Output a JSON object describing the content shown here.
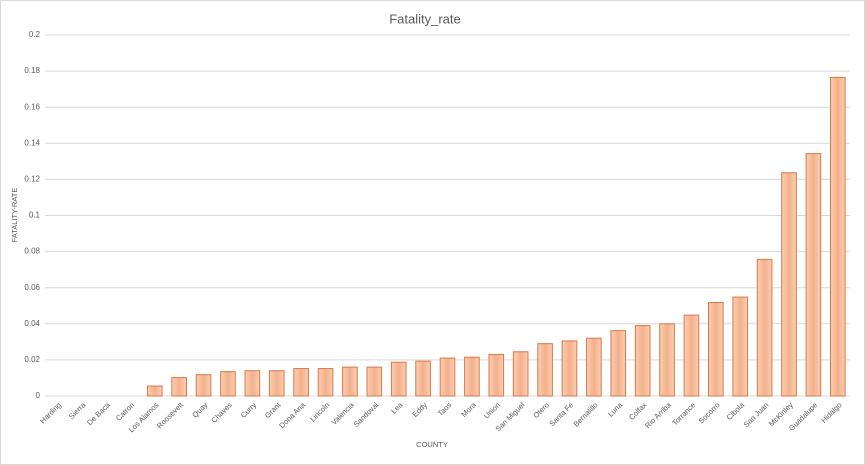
{
  "chart_data": {
    "type": "bar",
    "title": "Fatality_rate",
    "x_label": "COUNTY",
    "y_label": "FATALITY-RATE",
    "categories": [
      "Harding",
      "Sierra",
      "De Baca",
      "Catron",
      "Los Alamos",
      "Roosevelt",
      "Quay",
      "Chaves",
      "Curry",
      "Grant",
      "Dona Ana",
      "Lincoln",
      "Valencia",
      "Sandoval",
      "Lea",
      "Eddy",
      "Taos",
      "Mora",
      "Union",
      "San Miguel",
      "Otero",
      "Santa Fe",
      "Bernalillo",
      "Luna",
      "Colfax",
      "Rio Arriba",
      "Torrance",
      "Socorro",
      "Cibola",
      "San Juan",
      "McKinley",
      "Guadalupe",
      "Hidalgo"
    ],
    "values": [
      0,
      0,
      0,
      0,
      0.0055,
      0.0102,
      0.0118,
      0.0135,
      0.014,
      0.014,
      0.0152,
      0.0152,
      0.016,
      0.016,
      0.0187,
      0.0193,
      0.021,
      0.0215,
      0.023,
      0.0245,
      0.029,
      0.0305,
      0.032,
      0.0362,
      0.039,
      0.04,
      0.0448,
      0.0518,
      0.0548,
      0.0757,
      0.1237,
      0.1343,
      0.1765
    ],
    "color": "#d9784a",
    "ylim": [
      0,
      0.2
    ],
    "yticks": [
      0,
      0.02,
      0.04,
      0.06,
      0.08,
      0.1,
      0.12,
      0.14,
      0.16,
      0.18,
      0.2
    ],
    "grid": true
  }
}
